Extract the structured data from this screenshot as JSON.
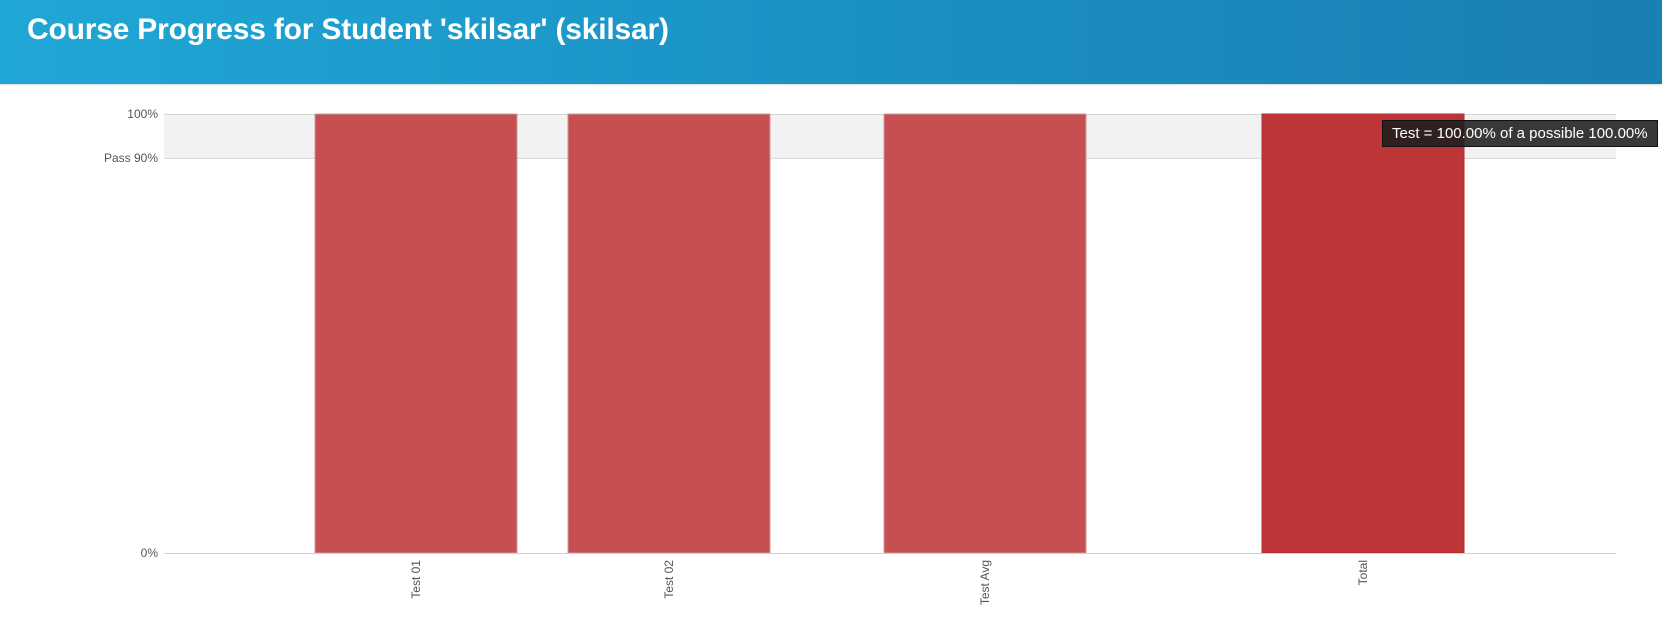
{
  "header": {
    "title": "Course Progress for Student 'skilsar' (skilsar)"
  },
  "colors": {
    "header_bg": "#1b8fc2",
    "bar": "#c54d4e",
    "bar_active": "#bd3536",
    "pass_band": "#f2f2f2"
  },
  "chart_data": {
    "type": "bar",
    "categories": [
      "Test 01",
      "Test 02",
      "Test Avg",
      "Total"
    ],
    "values": [
      100,
      100,
      100,
      100
    ],
    "ylim": [
      0,
      100
    ],
    "y_ticks": [
      {
        "value": 0,
        "label": "0%"
      },
      {
        "value": 90,
        "label": "Pass 90%"
      },
      {
        "value": 100,
        "label": "100%"
      }
    ],
    "pass_threshold": 90,
    "highlighted_category": "Total",
    "xlabel": "",
    "ylabel": "",
    "grid": false
  },
  "tooltip": {
    "text": "Test = 100.00% of a possible 100.00%"
  }
}
